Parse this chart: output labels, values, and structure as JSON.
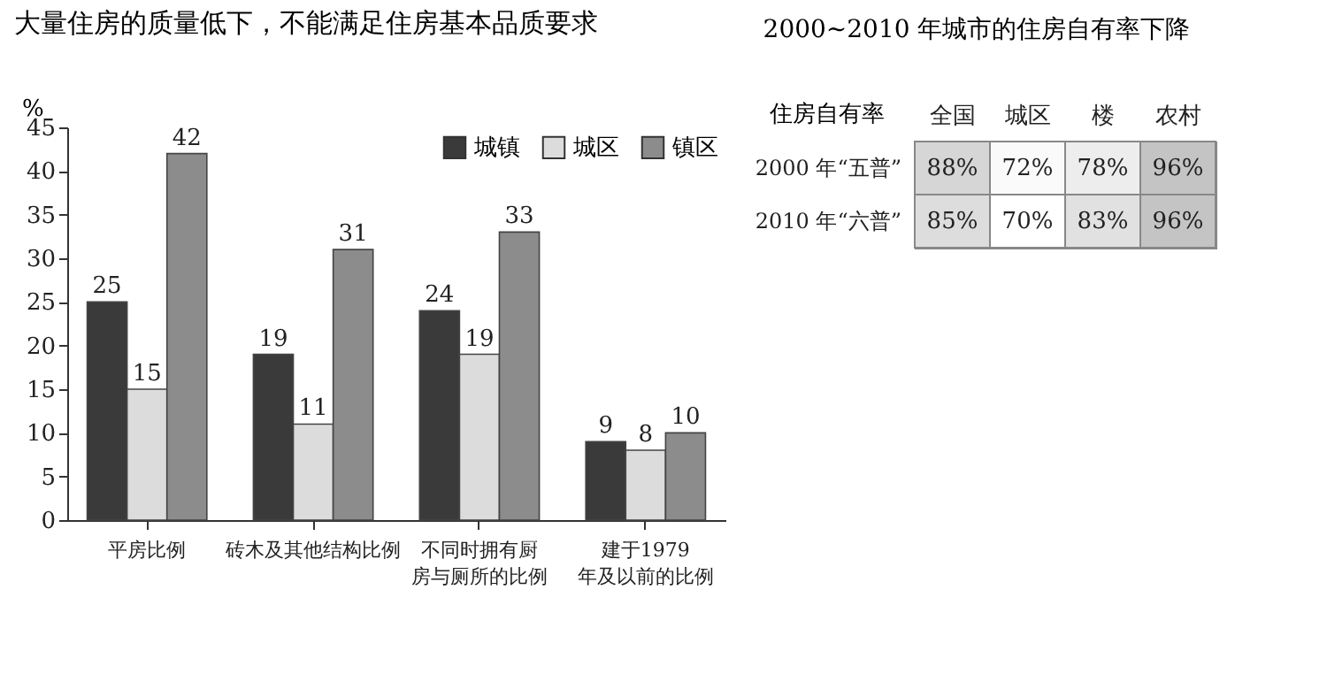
{
  "chart_data": [
    {
      "type": "bar",
      "title": "大量住房的质量低下，不能满足住房基本品质要求",
      "ylabel": "%",
      "categories": [
        "平房比例",
        "砖木及其他结构比例",
        "不同时拥有厨房与厕所的比例",
        "建于1979年及以前的比例"
      ],
      "series": [
        {
          "name": "城镇",
          "color": "#3a3a3a",
          "values": [
            25,
            19,
            24,
            9
          ]
        },
        {
          "name": "城区",
          "color": "#dcdcdc",
          "values": [
            15,
            11,
            19,
            8
          ]
        },
        {
          "name": "镇区",
          "color": "#8c8c8c",
          "values": [
            42,
            31,
            33,
            10
          ]
        }
      ],
      "ylim": [
        0,
        45
      ],
      "yticks": [
        0,
        5,
        10,
        15,
        20,
        25,
        30,
        35,
        40,
        45
      ],
      "data_labels": true,
      "grid": false,
      "legend": "top right"
    },
    {
      "type": "heatmap",
      "title": "2000~2010 年城市的住房自有率下降",
      "ylabel": "住房自有率",
      "categories": [
        "全国",
        "城区",
        "楼",
        "农村"
      ],
      "y_categories": [
        "2000 年“五普”",
        "2010 年“六普”"
      ],
      "cells": [
        [
          88,
          72,
          78,
          96
        ],
        [
          85,
          70,
          83,
          96
        ]
      ],
      "cell_labels": [
        [
          "88%",
          "72%",
          "78%",
          "96%"
        ],
        [
          "85%",
          "70%",
          "83%",
          "96%"
        ]
      ]
    }
  ]
}
